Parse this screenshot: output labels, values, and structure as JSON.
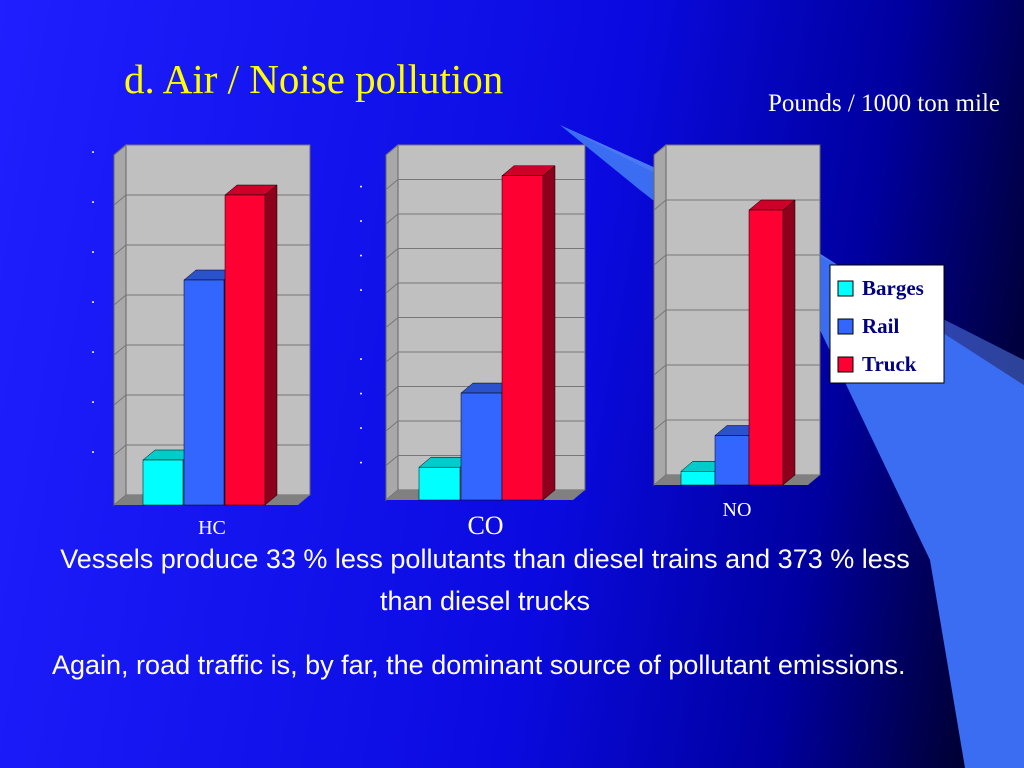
{
  "title": "d. Air / Noise pollution",
  "unit_label": "Pounds / 1000 ton mile",
  "paragraphs": [
    "Vessels produce 33 % less pollutants than diesel trains and 373 % less than diesel trucks",
    "Again, road traffic is, by far, the dominant source of pollutant emissions."
  ],
  "chart_data": [
    {
      "type": "bar",
      "categories": [
        "HC"
      ],
      "series": [
        {
          "color": "#00ffff",
          "values": [
            0.9
          ]
        },
        {
          "color": "#3366ff",
          "values": [
            4.5
          ]
        },
        {
          "color": "#ff0033",
          "values": [
            6.2
          ]
        }
      ],
      "ylim": [
        0,
        7
      ],
      "yticks": [
        {
          "value": 1,
          "label": "."
        },
        {
          "value": 2,
          "label": "."
        },
        {
          "value": 3,
          "label": "."
        },
        {
          "value": 4,
          "label": "."
        },
        {
          "value": 5,
          "label": "."
        },
        {
          "value": 6,
          "label": "."
        },
        {
          "value": 7,
          "label": "."
        }
      ],
      "grid": [
        1,
        2,
        3,
        4,
        5,
        6,
        7
      ]
    },
    {
      "type": "bar",
      "categories": [
        "CO"
      ],
      "series": [
        {
          "color": "#00ffff",
          "values": [
            0.95
          ]
        },
        {
          "color": "#3366ff",
          "values": [
            3.1
          ]
        },
        {
          "color": "#ff0033",
          "values": [
            9.4
          ]
        }
      ],
      "ylim": [
        0,
        10
      ],
      "yticks": [
        {
          "value": 1,
          "label": "."
        },
        {
          "value": 2,
          "label": "."
        },
        {
          "value": 3,
          "label": "."
        },
        {
          "value": 4,
          "label": "."
        },
        {
          "value": 6,
          "label": "."
        },
        {
          "value": 7,
          "label": "."
        },
        {
          "value": 8,
          "label": "."
        },
        {
          "value": 9,
          "label": "."
        }
      ],
      "grid": [
        1,
        2,
        3,
        4,
        5,
        6,
        7,
        8,
        9,
        10
      ]
    },
    {
      "type": "bar",
      "categories": [
        "NO"
      ],
      "series": [
        {
          "name": "Barges",
          "color": "#00ffff",
          "values": [
            0.25
          ]
        },
        {
          "name": "Rail",
          "color": "#3366ff",
          "values": [
            0.9
          ]
        },
        {
          "name": "Truck",
          "color": "#ff0033",
          "values": [
            5.0
          ]
        }
      ],
      "ylim": [
        0,
        6
      ],
      "grid": [
        1,
        2,
        3,
        4,
        5,
        6
      ],
      "legend": "right"
    }
  ]
}
